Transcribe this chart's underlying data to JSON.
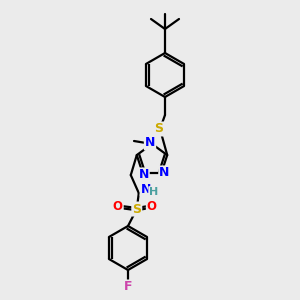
{
  "background_color": "#ebebeb",
  "bond_color": "#000000",
  "bond_width": 1.6,
  "atom_colors": {
    "N": "#0000ff",
    "S": "#ccaa00",
    "O": "#ff0000",
    "F": "#cc44aa",
    "H": "#4ca0a0",
    "C": "#000000"
  },
  "font_size_atoms": 8.5,
  "figsize": [
    3.0,
    3.0
  ],
  "dpi": 100,
  "scale": 1.0
}
